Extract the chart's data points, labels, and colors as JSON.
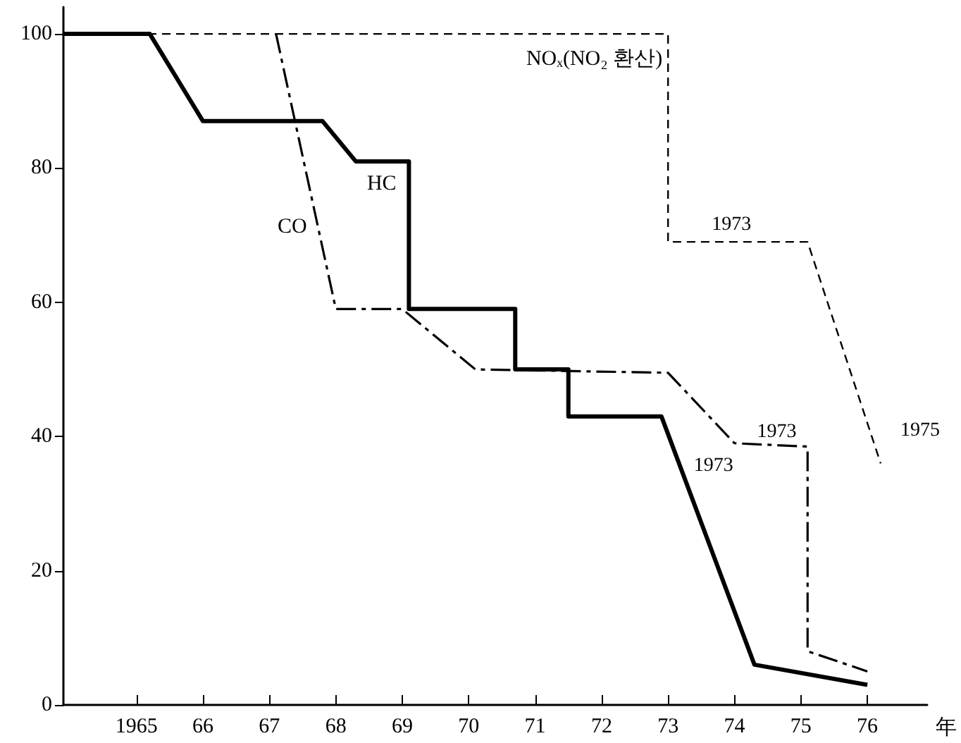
{
  "chart_data": {
    "type": "line",
    "xlabel": "年",
    "xlim": [
      1963.9,
      1976.9
    ],
    "xticks": [
      {
        "value": 1965,
        "label": "1965"
      },
      {
        "value": 1966,
        "label": "66"
      },
      {
        "value": 1967,
        "label": "67"
      },
      {
        "value": 1968,
        "label": "68"
      },
      {
        "value": 1969,
        "label": "69"
      },
      {
        "value": 1970,
        "label": "70"
      },
      {
        "value": 1971,
        "label": "71"
      },
      {
        "value": 1972,
        "label": "72"
      },
      {
        "value": 1973,
        "label": "73"
      },
      {
        "value": 1974,
        "label": "74"
      },
      {
        "value": 1975,
        "label": "75"
      },
      {
        "value": 1976,
        "label": "76"
      }
    ],
    "ylim": [
      0,
      104
    ],
    "yticks": [
      0,
      20,
      40,
      60,
      80,
      100
    ],
    "grid": false,
    "legend": false,
    "marker": "none",
    "series": [
      {
        "name": "HC",
        "color": "#000000",
        "line_style": "solid",
        "x": [
          1963.9,
          1965.2,
          1966.0,
          1967.8,
          1968.3,
          1969.1,
          1969.1,
          1970.7,
          1970.7,
          1971.5,
          1971.5,
          1972.9,
          1974.3,
          1976.0
        ],
        "values": [
          100,
          100,
          87,
          87,
          81,
          81,
          59,
          59,
          50,
          50,
          43,
          43,
          6,
          3
        ]
      },
      {
        "name": "CO",
        "color": "#000000",
        "line_style": "dashdot",
        "x": [
          1967.1,
          1968.0,
          1969.0,
          1970.1,
          1973.0,
          1974.0,
          1975.1,
          1975.1,
          1976.0
        ],
        "values": [
          100,
          59,
          59,
          50,
          49.5,
          39,
          38.5,
          8,
          5
        ]
      },
      {
        "name": "NOₓ(NO₂ 환산)",
        "color": "#000000",
        "line_style": "dashed",
        "x": [
          1963.9,
          1973.0,
          1973.0,
          1975.1,
          1976.2
        ],
        "values": [
          100,
          100,
          69,
          69,
          36
        ]
      }
    ],
    "annotations": [
      "1973",
      "1973",
      "1973",
      "1975"
    ]
  }
}
